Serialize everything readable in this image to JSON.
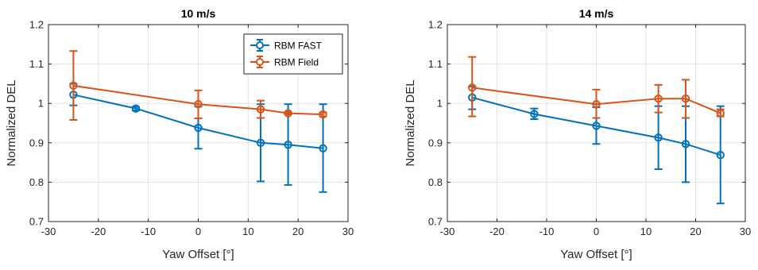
{
  "chart_data": [
    {
      "type": "line",
      "title": "10 m/s",
      "xlabel": "Yaw Offset [°]",
      "ylabel": "Normalized DEL",
      "xlim": [
        -30,
        30
      ],
      "ylim": [
        0.7,
        1.2
      ],
      "x_ticks": [
        "-30",
        "-20",
        "-10",
        "0",
        "10",
        "20",
        "30"
      ],
      "y_ticks": [
        "0.7",
        "0.8",
        "0.9",
        "1",
        "1.1",
        "1.2"
      ],
      "grid": true,
      "legend": {
        "placement": "top-right",
        "show": true
      },
      "series": [
        {
          "name": "RBM FAST",
          "color": "#0072BD",
          "marker": "circle",
          "x": [
            -25,
            -12.5,
            0,
            12.5,
            18,
            25
          ],
          "y": [
            1.022,
            0.987,
            0.938,
            0.9,
            0.895,
            0.886
          ],
          "err_low": [
            0.995,
            0.982,
            0.885,
            0.802,
            0.793,
            0.775
          ],
          "err_high": [
            1.05,
            0.991,
            0.992,
            0.998,
            0.998,
            0.998
          ]
        },
        {
          "name": "RBM Field",
          "color": "#D95319",
          "marker": "circle",
          "x": [
            -25,
            0,
            12.5,
            18,
            25
          ],
          "y": [
            1.045,
            0.998,
            0.985,
            0.975,
            0.972
          ],
          "err_low": [
            0.958,
            0.962,
            0.963,
            0.972,
            0.967
          ],
          "err_high": [
            1.133,
            1.033,
            1.007,
            0.978,
            0.977
          ]
        }
      ]
    },
    {
      "type": "line",
      "title": "14 m/s",
      "xlabel": "Yaw Offset [°]",
      "ylabel": "Normalized DEL",
      "xlim": [
        -30,
        30
      ],
      "ylim": [
        0.7,
        1.2
      ],
      "x_ticks": [
        "-30",
        "-20",
        "-10",
        "0",
        "10",
        "20",
        "30"
      ],
      "y_ticks": [
        "0.7",
        "0.8",
        "0.9",
        "1",
        "1.1",
        "1.2"
      ],
      "grid": true,
      "legend": {
        "show": false
      },
      "series": [
        {
          "name": "RBM FAST",
          "color": "#0072BD",
          "marker": "circle",
          "x": [
            -25,
            -12.5,
            0,
            12.5,
            18,
            25
          ],
          "y": [
            1.015,
            0.973,
            0.943,
            0.913,
            0.897,
            0.869
          ],
          "err_low": [
            0.985,
            0.96,
            0.897,
            0.833,
            0.8,
            0.746
          ],
          "err_high": [
            1.043,
            0.987,
            0.99,
            0.993,
            0.993,
            0.993
          ]
        },
        {
          "name": "RBM Field",
          "color": "#D95319",
          "marker": "circle",
          "x": [
            -25,
            0,
            12.5,
            18,
            25
          ],
          "y": [
            1.04,
            0.998,
            1.012,
            1.012,
            0.975
          ],
          "err_low": [
            0.967,
            0.963,
            0.977,
            0.963,
            0.967
          ],
          "err_high": [
            1.118,
            1.035,
            1.047,
            1.06,
            0.985
          ]
        }
      ]
    }
  ]
}
